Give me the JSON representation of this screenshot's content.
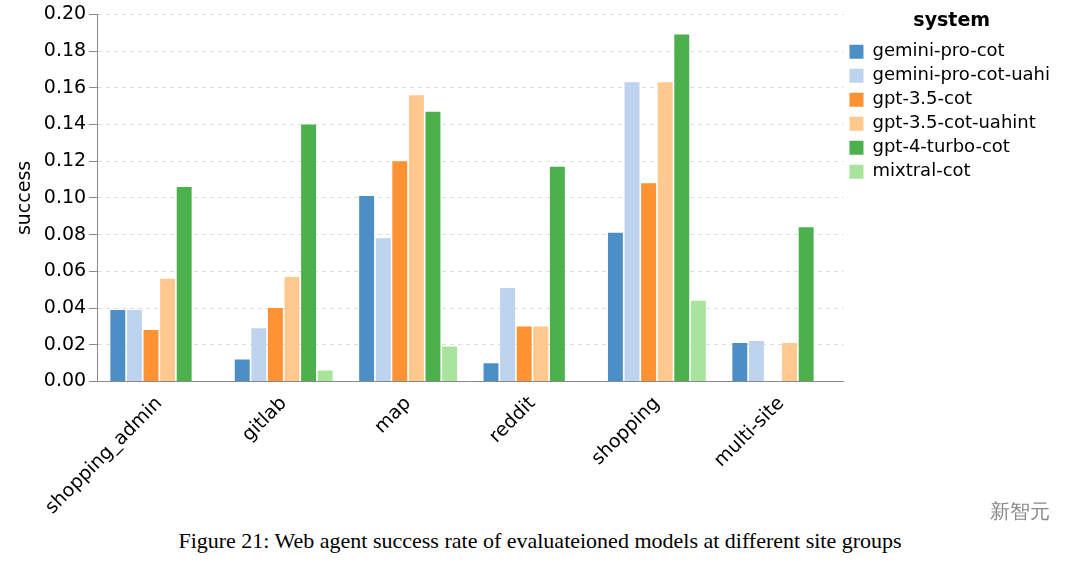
{
  "chart_data": {
    "type": "bar",
    "caption": "Figure 21: Web agent success rate of evaluateioned models at different site groups",
    "watermark": "新智元",
    "y_label": "success",
    "legend_title": "system",
    "legend": "right",
    "grid": true,
    "categories": [
      "shopping_admin",
      "gitlab",
      "map",
      "reddit",
      "shopping",
      "multi-site"
    ],
    "series": [
      {
        "name": "gemini-pro-cot",
        "color": "#4c8fc6",
        "values": [
          0.039,
          0.012,
          0.101,
          0.01,
          0.081,
          0.021
        ]
      },
      {
        "name": "gemini-pro-cot-uahi",
        "color": "#bdd3ee",
        "values": [
          0.039,
          0.029,
          0.078,
          0.051,
          0.163,
          0.022
        ]
      },
      {
        "name": "gpt-3.5-cot",
        "color": "#ff9233",
        "values": [
          0.028,
          0.04,
          0.12,
          0.03,
          0.108,
          0
        ]
      },
      {
        "name": "gpt-3.5-cot-uahint",
        "color": "#ffc88e",
        "values": [
          0.056,
          0.057,
          0.156,
          0.03,
          0.163,
          0.021
        ]
      },
      {
        "name": "gpt-4-turbo-cot",
        "color": "#4cb04c",
        "values": [
          0.106,
          0.14,
          0.147,
          0.117,
          0.189,
          0.084
        ]
      },
      {
        "name": "mixtral-cot",
        "color": "#a8e49c",
        "values": [
          0,
          0.006,
          0.019,
          0,
          0.044,
          0
        ]
      }
    ],
    "ylim": [
      0,
      0.2
    ],
    "yticks": [
      {
        "value": 0,
        "label": "0.00"
      },
      {
        "value": 0.02,
        "label": "0.02"
      },
      {
        "value": 0.04,
        "label": "0.04"
      },
      {
        "value": 0.06,
        "label": "0.06"
      },
      {
        "value": 0.08,
        "label": "0.08"
      },
      {
        "value": 0.1,
        "label": "0.10"
      },
      {
        "value": 0.12,
        "label": "0.12"
      },
      {
        "value": 0.14,
        "label": "0.14"
      },
      {
        "value": 0.16,
        "label": "0.16"
      },
      {
        "value": 0.18,
        "label": "0.18"
      },
      {
        "value": 0.2,
        "label": "0.20"
      }
    ]
  }
}
